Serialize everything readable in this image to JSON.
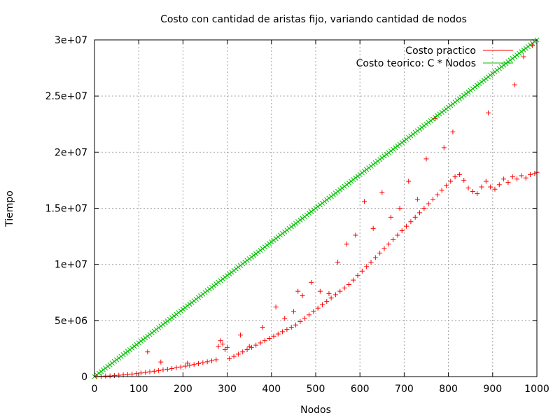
{
  "chart_data": {
    "type": "scatter",
    "title": "Costo con cantidad de aristas fijo, variando cantidad de nodos",
    "xlabel": "Nodos",
    "ylabel": "Tiempo",
    "xlim": [
      0,
      1000
    ],
    "ylim": [
      0,
      30000000
    ],
    "grid": true,
    "legend_position": "top-right",
    "x_ticks": [
      {
        "value": 0,
        "label": "0"
      },
      {
        "value": 100,
        "label": "100"
      },
      {
        "value": 200,
        "label": "200"
      },
      {
        "value": 300,
        "label": "300"
      },
      {
        "value": 400,
        "label": "400"
      },
      {
        "value": 500,
        "label": "500"
      },
      {
        "value": 600,
        "label": "600"
      },
      {
        "value": 700,
        "label": "700"
      },
      {
        "value": 800,
        "label": "800"
      },
      {
        "value": 900,
        "label": "900"
      },
      {
        "value": 1000,
        "label": "1000"
      }
    ],
    "y_ticks": [
      {
        "value": 0,
        "label": "0"
      },
      {
        "value": 5000000,
        "label": "5e+06"
      },
      {
        "value": 10000000,
        "label": "1e+07"
      },
      {
        "value": 15000000,
        "label": "1.5e+07"
      },
      {
        "value": 20000000,
        "label": "2e+07"
      },
      {
        "value": 25000000,
        "label": "2.5e+07"
      },
      {
        "value": 30000000,
        "label": "3e+07"
      }
    ],
    "series": [
      {
        "name": "Costo practico",
        "marker": "plus",
        "color": "#ff0000",
        "points": [
          [
            5,
            2000
          ],
          [
            15,
            20000
          ],
          [
            25,
            50000
          ],
          [
            35,
            60000
          ],
          [
            45,
            90000
          ],
          [
            55,
            120000
          ],
          [
            65,
            150000
          ],
          [
            75,
            190000
          ],
          [
            85,
            230000
          ],
          [
            95,
            270000
          ],
          [
            105,
            320000
          ],
          [
            115,
            370000
          ],
          [
            120,
            2200000
          ],
          [
            125,
            430000
          ],
          [
            135,
            480000
          ],
          [
            145,
            540000
          ],
          [
            150,
            1300000
          ],
          [
            155,
            600000
          ],
          [
            165,
            660000
          ],
          [
            175,
            720000
          ],
          [
            185,
            790000
          ],
          [
            195,
            860000
          ],
          [
            205,
            930000
          ],
          [
            210,
            1200000
          ],
          [
            215,
            1000000
          ],
          [
            225,
            1080000
          ],
          [
            235,
            1160000
          ],
          [
            245,
            1240000
          ],
          [
            255,
            1320000
          ],
          [
            265,
            1400000
          ],
          [
            275,
            1500000
          ],
          [
            280,
            2700000
          ],
          [
            285,
            3200000
          ],
          [
            290,
            2900000
          ],
          [
            295,
            2400000
          ],
          [
            300,
            2600000
          ],
          [
            305,
            1600000
          ],
          [
            315,
            1800000
          ],
          [
            325,
            2000000
          ],
          [
            330,
            3700000
          ],
          [
            335,
            2200000
          ],
          [
            345,
            2400000
          ],
          [
            350,
            2700000
          ],
          [
            355,
            2600000
          ],
          [
            365,
            2800000
          ],
          [
            375,
            3000000
          ],
          [
            380,
            4400000
          ],
          [
            385,
            3200000
          ],
          [
            395,
            3400000
          ],
          [
            405,
            3600000
          ],
          [
            410,
            6200000
          ],
          [
            415,
            3800000
          ],
          [
            425,
            4000000
          ],
          [
            430,
            5200000
          ],
          [
            435,
            4200000
          ],
          [
            445,
            4400000
          ],
          [
            450,
            5800000
          ],
          [
            455,
            4600000
          ],
          [
            460,
            7600000
          ],
          [
            465,
            4900000
          ],
          [
            470,
            7200000
          ],
          [
            475,
            5200000
          ],
          [
            485,
            5500000
          ],
          [
            490,
            8400000
          ],
          [
            495,
            5800000
          ],
          [
            505,
            6100000
          ],
          [
            510,
            7600000
          ],
          [
            515,
            6400000
          ],
          [
            525,
            6700000
          ],
          [
            530,
            7400000
          ],
          [
            535,
            7000000
          ],
          [
            545,
            7300000
          ],
          [
            550,
            10200000
          ],
          [
            555,
            7600000
          ],
          [
            565,
            7900000
          ],
          [
            570,
            11800000
          ],
          [
            575,
            8200000
          ],
          [
            585,
            8600000
          ],
          [
            590,
            12600000
          ],
          [
            595,
            9000000
          ],
          [
            605,
            9400000
          ],
          [
            610,
            15600000
          ],
          [
            615,
            9800000
          ],
          [
            625,
            10200000
          ],
          [
            630,
            13200000
          ],
          [
            635,
            10600000
          ],
          [
            645,
            11000000
          ],
          [
            650,
            16400000
          ],
          [
            655,
            11400000
          ],
          [
            665,
            11800000
          ],
          [
            670,
            14200000
          ],
          [
            675,
            12200000
          ],
          [
            685,
            12600000
          ],
          [
            690,
            15000000
          ],
          [
            695,
            13000000
          ],
          [
            705,
            13400000
          ],
          [
            710,
            17400000
          ],
          [
            715,
            13800000
          ],
          [
            725,
            14200000
          ],
          [
            730,
            15800000
          ],
          [
            735,
            14600000
          ],
          [
            745,
            15000000
          ],
          [
            750,
            19400000
          ],
          [
            755,
            15400000
          ],
          [
            765,
            15800000
          ],
          [
            770,
            23000000
          ],
          [
            775,
            16200000
          ],
          [
            785,
            16600000
          ],
          [
            790,
            20400000
          ],
          [
            795,
            17000000
          ],
          [
            805,
            17400000
          ],
          [
            810,
            21800000
          ],
          [
            815,
            17800000
          ],
          [
            825,
            18000000
          ],
          [
            835,
            17500000
          ],
          [
            845,
            16800000
          ],
          [
            855,
            16500000
          ],
          [
            865,
            16300000
          ],
          [
            875,
            16900000
          ],
          [
            885,
            17400000
          ],
          [
            890,
            23500000
          ],
          [
            895,
            16900000
          ],
          [
            905,
            16700000
          ],
          [
            915,
            17100000
          ],
          [
            925,
            17600000
          ],
          [
            935,
            17300000
          ],
          [
            945,
            17800000
          ],
          [
            950,
            26000000
          ],
          [
            955,
            17600000
          ],
          [
            965,
            17900000
          ],
          [
            970,
            28500000
          ],
          [
            975,
            17700000
          ],
          [
            985,
            18000000
          ],
          [
            990,
            29500000
          ],
          [
            995,
            18100000
          ],
          [
            1000,
            18200000
          ]
        ]
      },
      {
        "name": "Costo teorico: C * Nodos",
        "marker": "cross",
        "color": "#00c000",
        "slope": 30000
      }
    ]
  }
}
